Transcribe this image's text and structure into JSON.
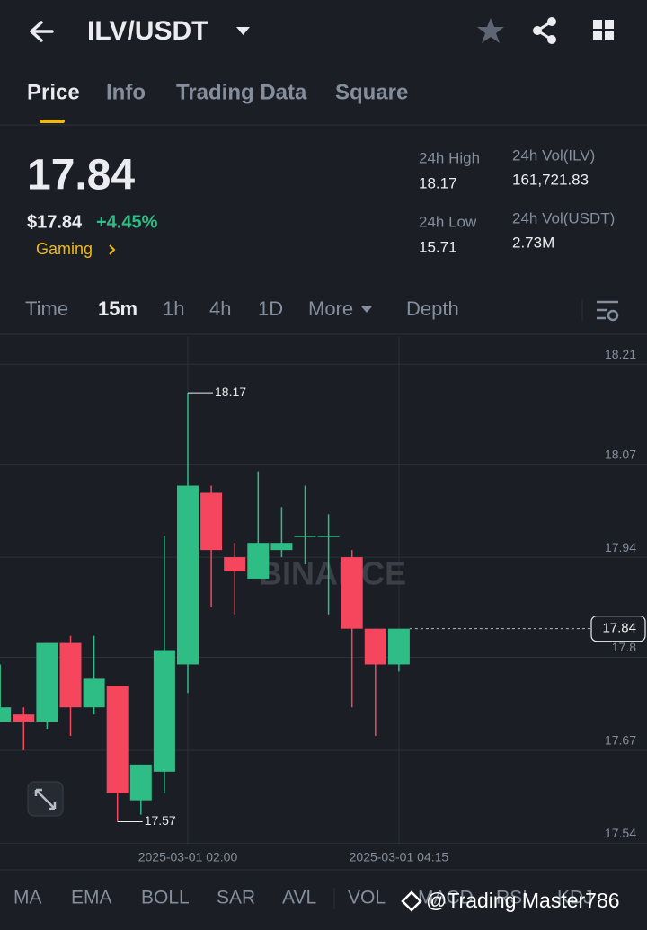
{
  "header": {
    "title": "ILV/USDT"
  },
  "tabs": [
    "Price",
    "Info",
    "Trading Data",
    "Square"
  ],
  "price": {
    "last": "17.84",
    "usd": "$17.84",
    "change": "+4.45%",
    "sector": "Gaming"
  },
  "stats": [
    {
      "label": "24h High",
      "value": "18.17"
    },
    {
      "label": "24h Low",
      "value": "15.71"
    },
    {
      "label": "24h Vol(ILV)",
      "value": "161,721.83"
    },
    {
      "label": "24h Vol(USDT)",
      "value": "2.73M"
    }
  ],
  "intervals": [
    "Time",
    "15m",
    "1h",
    "4h",
    "1D",
    "More",
    "Depth"
  ],
  "chart_data": {
    "type": "candlestick",
    "watermark": "BINANCE",
    "categories": [
      null,
      null,
      null,
      null,
      null,
      null,
      null,
      null,
      "2025-03-01 02:00",
      null,
      null,
      null,
      null,
      null,
      null,
      null,
      null,
      "2025-03-01 04:15"
    ],
    "open": [
      17.71,
      17.72,
      17.71,
      17.82,
      17.73,
      17.76,
      17.6,
      17.64,
      17.79,
      18.03,
      17.94,
      17.91,
      17.95,
      17.97,
      17.97,
      17.94,
      17.84,
      17.79
    ],
    "high": [
      17.79,
      17.73,
      17.82,
      17.83,
      17.83,
      17.76,
      17.65,
      17.97,
      18.17,
      18.04,
      17.96,
      18.06,
      18.01,
      18.04,
      18.0,
      17.95,
      17.84,
      17.84
    ],
    "low": [
      17.71,
      17.67,
      17.7,
      17.69,
      17.72,
      17.57,
      17.58,
      17.61,
      17.75,
      17.87,
      17.86,
      17.91,
      17.94,
      17.93,
      17.86,
      17.73,
      17.69,
      17.78
    ],
    "close": [
      17.73,
      17.71,
      17.82,
      17.73,
      17.77,
      17.61,
      17.65,
      17.81,
      18.04,
      17.95,
      17.92,
      17.96,
      17.96,
      17.97,
      17.97,
      17.84,
      17.79,
      17.84
    ],
    "up_color": "#2ebd85",
    "down_color": "#f6465d",
    "ylim": [
      17.538,
      18.248
    ],
    "yticks": [
      18.21,
      18.07,
      17.94,
      17.8,
      17.67,
      17.54
    ],
    "grid": true,
    "annotations": [
      18.17,
      17.57
    ],
    "last_price": 17.84
  },
  "indicators": [
    "MA",
    "EMA",
    "BOLL",
    "SAR",
    "AVL",
    "VOL",
    "MACD",
    "RSI",
    "KDJ"
  ],
  "overlay": "@Trading Master786"
}
